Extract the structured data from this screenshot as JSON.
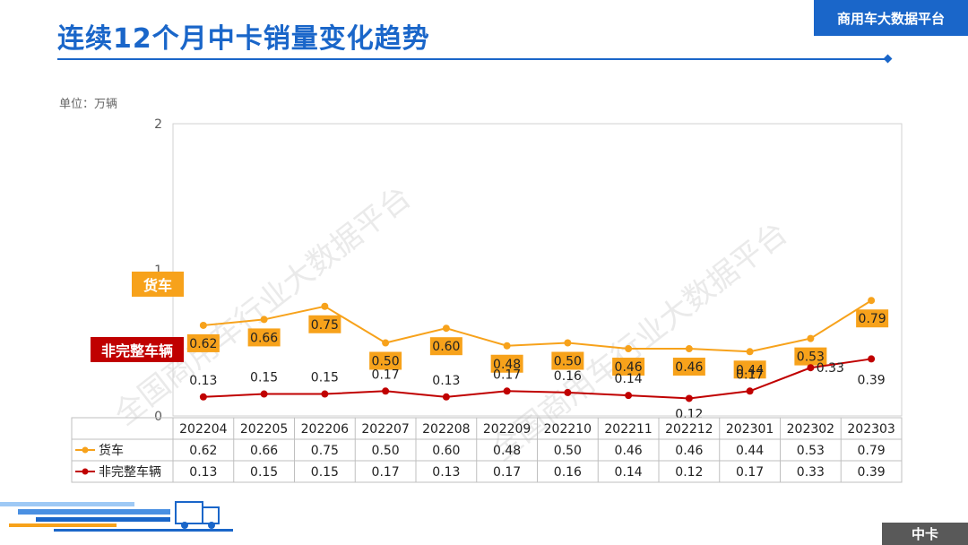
{
  "header": {
    "title": "连续12个月中卡销量变化趋势",
    "brand": "商用车大数据平台"
  },
  "unit_label": "单位：万辆",
  "footer": {
    "tag": "中卡"
  },
  "watermark": "全国商用车行业大数据平台",
  "chart_data": {
    "type": "line",
    "title": "连续12个月中卡销量变化趋势",
    "xlabel": "",
    "ylabel": "单位：万辆",
    "ylim": [
      0,
      2
    ],
    "yticks": [
      "0",
      "1",
      "1",
      "2"
    ],
    "categories": [
      "202204",
      "202205",
      "202206",
      "202207",
      "202208",
      "202209",
      "202210",
      "202211",
      "202212",
      "202301",
      "202302",
      "202303"
    ],
    "series": [
      {
        "name": "货车",
        "color": "#f7a21b",
        "values": [
          0.62,
          0.66,
          0.75,
          0.5,
          0.6,
          0.48,
          0.5,
          0.46,
          0.46,
          0.44,
          0.53,
          0.79
        ],
        "labels": [
          "0.62",
          "0.66",
          "0.75",
          "0.50",
          "0.60",
          "0.48",
          "0.50",
          "0.46",
          "0.46",
          "0.44",
          "0.53",
          "0.79"
        ]
      },
      {
        "name": "非完整车辆",
        "color": "#c00000",
        "values": [
          0.13,
          0.15,
          0.15,
          0.17,
          0.13,
          0.17,
          0.16,
          0.14,
          0.12,
          0.17,
          0.33,
          0.39
        ],
        "labels": [
          "0.13",
          "0.15",
          "0.15",
          "0.17",
          "0.13",
          "0.17",
          "0.16",
          "0.14",
          "0.12",
          "0.17",
          "0.33",
          "0.39"
        ]
      }
    ],
    "series_tags": [
      "货车",
      "非完整车辆"
    ]
  }
}
